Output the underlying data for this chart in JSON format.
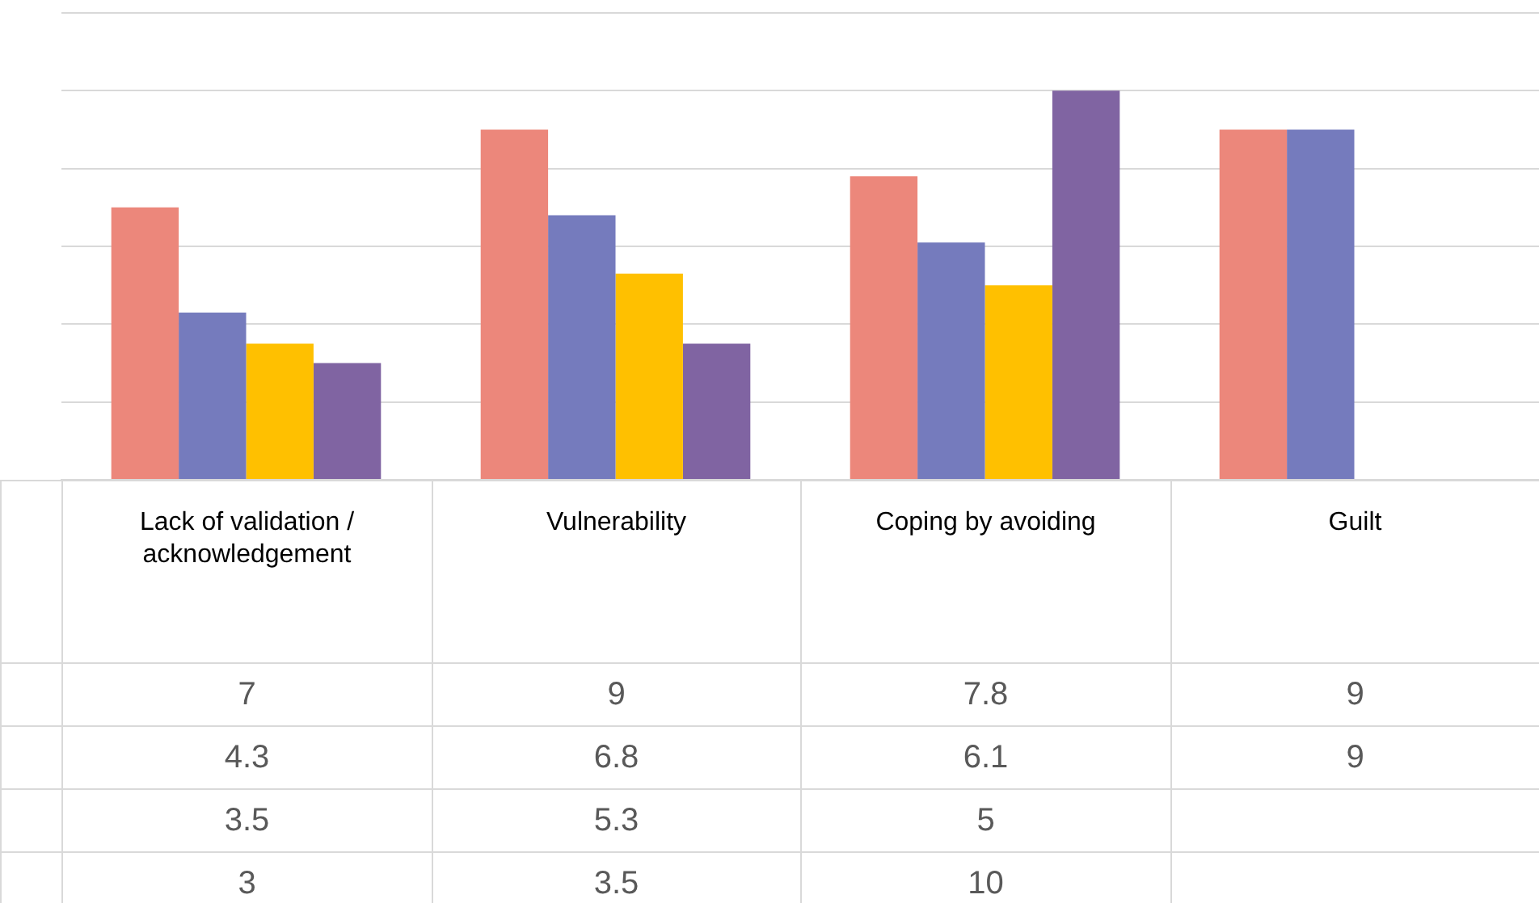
{
  "chart_data": {
    "type": "bar",
    "categories": [
      "Lack of validation / acknowledgement",
      "Vulnerability",
      "Coping by avoiding",
      "Guilt"
    ],
    "series": [
      {
        "color": "#ec877b",
        "values": [
          7,
          9,
          7.8,
          9
        ]
      },
      {
        "color": "#757bbd",
        "values": [
          4.3,
          6.8,
          6.1,
          9
        ]
      },
      {
        "color": "#ffc000",
        "values": [
          3.5,
          5.3,
          5,
          null
        ]
      },
      {
        "color": "#8064a2",
        "values": [
          3,
          3.5,
          10,
          null
        ]
      }
    ],
    "ylim": [
      0,
      12
    ],
    "yticks": [
      {
        "value": 0,
        "label": null
      },
      {
        "value": 2,
        "label": null
      },
      {
        "value": 4,
        "label": null
      },
      {
        "value": 6,
        "label": null
      },
      {
        "value": 8,
        "label": null
      },
      {
        "value": 10,
        "label": null
      },
      {
        "value": 12,
        "label": null
      }
    ],
    "grid": "y",
    "tick_labels": "x",
    "data_labels": true
  }
}
